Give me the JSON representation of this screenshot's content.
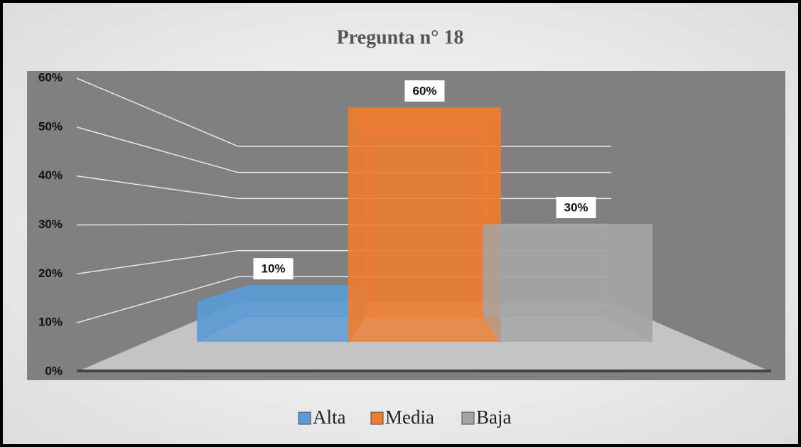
{
  "chart_data": {
    "type": "bar3d",
    "title": "Pregunta n° 18",
    "categories": [
      null
    ],
    "series": [
      {
        "name": "Alta",
        "color": "#5b9bd5",
        "values": [
          10
        ],
        "value_labels": [
          "10%"
        ]
      },
      {
        "name": "Media",
        "color": "#ed7d31",
        "values": [
          60
        ],
        "value_labels": [
          "60%"
        ]
      },
      {
        "name": "Baja",
        "color": "#a5a5a5",
        "values": [
          30
        ],
        "value_labels": [
          "30%"
        ]
      }
    ],
    "ylim": [
      0,
      60
    ],
    "yticks": [
      {
        "value": 0,
        "label": "0%"
      },
      {
        "value": 10,
        "label": "10%"
      },
      {
        "value": 20,
        "label": "20%"
      },
      {
        "value": 30,
        "label": "30%"
      },
      {
        "value": 40,
        "label": "40%"
      },
      {
        "value": 50,
        "label": "50%"
      },
      {
        "value": 60,
        "label": "60%"
      }
    ],
    "grid": true,
    "legend": "bottom"
  }
}
